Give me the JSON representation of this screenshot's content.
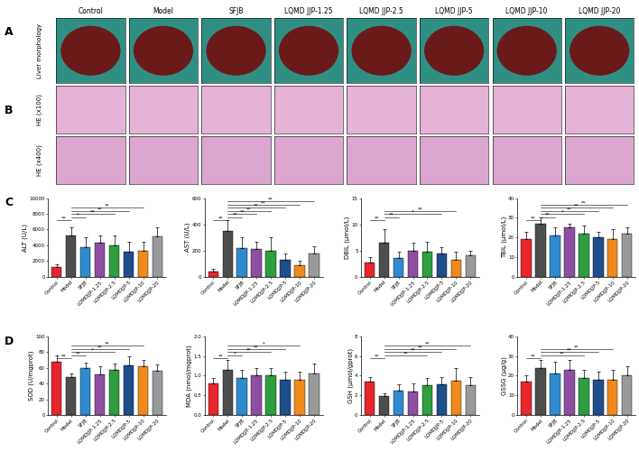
{
  "panel_labels": [
    "A",
    "B",
    "C",
    "D"
  ],
  "groups": [
    "Control",
    "Model",
    "SFJB",
    "LQMD JJP-1.25",
    "LQMD JJP-2.5",
    "LQMD JJP-5",
    "LQMD JJP-10",
    "LQMD JJP-20"
  ],
  "image_rows": [
    "Liver morphology",
    "HE (x100)",
    "HE (x400)"
  ],
  "chart_data": [
    {
      "type": "bar",
      "y_label": "ALT (U/L)",
      "categories": [
        "Control",
        "Model",
        "SFJB",
        "LQMDJJP-1.25",
        "LQMDJJP-2.5",
        "LQMDJJP-5",
        "LQMDJJP-10",
        "LQMDJJP-20"
      ],
      "values": [
        1200,
        5300,
        3800,
        4300,
        4000,
        3200,
        3300,
        5100
      ],
      "errors": [
        400,
        1000,
        1200,
        1000,
        1200,
        1300,
        1200,
        1200
      ],
      "colors": [
        "#e8262b",
        "#4d4d4d",
        "#2e8bd0",
        "#8e4fa3",
        "#2e9e3f",
        "#1f4e8c",
        "#f08a1c",
        "#9a9a9a"
      ],
      "ylim": [
        0,
        10000
      ],
      "yticks": [
        0,
        2000,
        4000,
        6000,
        8000,
        10000
      ],
      "annotations": [
        {
          "from": 1,
          "to": 0,
          "label": "**"
        },
        {
          "from": 1,
          "to": 2,
          "label": "*"
        },
        {
          "from": 1,
          "to": 4,
          "label": "**"
        },
        {
          "from": 1,
          "to": 5,
          "label": "**"
        },
        {
          "from": 1,
          "to": 6,
          "label": "**"
        }
      ]
    },
    {
      "type": "bar",
      "y_label": "AST (U/L)",
      "categories": [
        "Control",
        "Model",
        "SFJB",
        "LQMDJJP-1.25",
        "LQMDJJP-2.5",
        "LQMDJJP-5",
        "LQMDJJP-10",
        "LQMDJJP-20"
      ],
      "values": [
        40,
        350,
        220,
        210,
        200,
        130,
        90,
        175
      ],
      "errors": [
        20,
        80,
        80,
        60,
        100,
        50,
        30,
        60
      ],
      "colors": [
        "#e8262b",
        "#4d4d4d",
        "#2e8bd0",
        "#8e4fa3",
        "#2e9e3f",
        "#1f4e8c",
        "#f08a1c",
        "#9a9a9a"
      ],
      "ylim": [
        0,
        600
      ],
      "yticks": [
        0,
        200,
        400,
        600
      ],
      "annotations": [
        {
          "from": 1,
          "to": 0,
          "label": "**"
        },
        {
          "from": 1,
          "to": 2,
          "label": "**"
        },
        {
          "from": 1,
          "to": 3,
          "label": "**"
        },
        {
          "from": 1,
          "to": 4,
          "label": "**"
        },
        {
          "from": 1,
          "to": 5,
          "label": "**"
        },
        {
          "from": 1,
          "to": 6,
          "label": "**"
        },
        {
          "from": 1,
          "to": 7,
          "label": "**"
        }
      ]
    },
    {
      "type": "bar",
      "y_label": "DBIL (μmol/L)",
      "categories": [
        "Control",
        "Model",
        "SFJB",
        "LQMDJJP-1.25",
        "LQMDJJP-2.5",
        "LQMDJJP-5",
        "LQMDJJP-10",
        "LQMDJJP-20"
      ],
      "values": [
        2.7,
        6.5,
        3.5,
        5.0,
        4.8,
        4.4,
        3.2,
        4.0
      ],
      "errors": [
        1.0,
        2.5,
        1.2,
        1.5,
        1.8,
        1.3,
        1.5,
        1.0
      ],
      "colors": [
        "#e8262b",
        "#4d4d4d",
        "#2e8bd0",
        "#8e4fa3",
        "#2e9e3f",
        "#1f4e8c",
        "#f08a1c",
        "#9a9a9a"
      ],
      "ylim": [
        0,
        15
      ],
      "yticks": [
        0,
        5,
        10,
        15
      ],
      "annotations": [
        {
          "from": 1,
          "to": 0,
          "label": "**"
        },
        {
          "from": 1,
          "to": 2,
          "label": "**"
        },
        {
          "from": 1,
          "to": 5,
          "label": "*"
        },
        {
          "from": 1,
          "to": 6,
          "label": "**"
        }
      ]
    },
    {
      "type": "bar",
      "y_label": "TBIL (μmol/L)",
      "categories": [
        "Control",
        "Model",
        "SFJB",
        "LQMDJJP-1.25",
        "LQMDJJP-2.5",
        "LQMDJJP-5",
        "LQMDJJP-10",
        "LQMDJJP-20"
      ],
      "values": [
        19,
        27,
        21,
        25,
        22,
        20,
        19,
        22
      ],
      "errors": [
        4,
        3,
        4,
        2,
        4,
        3,
        5,
        3
      ],
      "colors": [
        "#e8262b",
        "#4d4d4d",
        "#2e8bd0",
        "#8e4fa3",
        "#2e9e3f",
        "#1f4e8c",
        "#f08a1c",
        "#9a9a9a"
      ],
      "ylim": [
        0,
        40
      ],
      "yticks": [
        0,
        10,
        20,
        30,
        40
      ],
      "annotations": [
        {
          "from": 1,
          "to": 0,
          "label": "**"
        },
        {
          "from": 1,
          "to": 2,
          "label": "**"
        },
        {
          "from": 1,
          "to": 4,
          "label": "*"
        },
        {
          "from": 1,
          "to": 5,
          "label": "**"
        },
        {
          "from": 1,
          "to": 6,
          "label": "**"
        },
        {
          "from": 1,
          "to": 7,
          "label": "**"
        }
      ]
    },
    {
      "type": "bar",
      "y_label": "SOD (U/mgprot)",
      "categories": [
        "Control",
        "Model",
        "SFJB",
        "LQMDJJP-1.25",
        "LQMDJJP-2.5",
        "LQMDJJP-5",
        "LQMDJJP-10",
        "LQMDJJP-20"
      ],
      "values": [
        68,
        48,
        60,
        52,
        57,
        63,
        62,
        56
      ],
      "errors": [
        8,
        5,
        7,
        10,
        8,
        12,
        8,
        8
      ],
      "colors": [
        "#e8262b",
        "#4d4d4d",
        "#2e8bd0",
        "#8e4fa3",
        "#2e9e3f",
        "#1f4e8c",
        "#f08a1c",
        "#9a9a9a"
      ],
      "ylim": [
        0,
        100
      ],
      "yticks": [
        0,
        20,
        40,
        60,
        80,
        100
      ],
      "annotations": [
        {
          "from": 1,
          "to": 0,
          "label": "**"
        },
        {
          "from": 1,
          "to": 2,
          "label": "**"
        },
        {
          "from": 1,
          "to": 4,
          "label": "*"
        },
        {
          "from": 1,
          "to": 5,
          "label": "**"
        },
        {
          "from": 1,
          "to": 6,
          "label": "**"
        }
      ]
    },
    {
      "type": "bar",
      "y_label": "MDA (nmol/mgprot)",
      "categories": [
        "Control",
        "Model",
        "SFJB",
        "LQMDJJP-1.25",
        "LQMDJJP-2.5",
        "LQMDJJP-5",
        "LQMDJJP-10",
        "LQMDJJP-20"
      ],
      "values": [
        0.8,
        1.15,
        0.95,
        1.0,
        1.0,
        0.9,
        0.9,
        1.05
      ],
      "errors": [
        0.15,
        0.25,
        0.2,
        0.2,
        0.2,
        0.2,
        0.2,
        0.25
      ],
      "colors": [
        "#e8262b",
        "#4d4d4d",
        "#2e8bd0",
        "#8e4fa3",
        "#2e9e3f",
        "#1f4e8c",
        "#f08a1c",
        "#9a9a9a"
      ],
      "ylim": [
        0.0,
        2.0
      ],
      "yticks": [
        0.0,
        0.5,
        1.0,
        1.5,
        2.0
      ],
      "annotations": [
        {
          "from": 1,
          "to": 0,
          "label": "**"
        },
        {
          "from": 1,
          "to": 2,
          "label": "*"
        },
        {
          "from": 1,
          "to": 4,
          "label": "**"
        },
        {
          "from": 1,
          "to": 5,
          "label": "**"
        },
        {
          "from": 1,
          "to": 6,
          "label": "*"
        }
      ]
    },
    {
      "type": "bar",
      "y_label": "GSH (μmol/gprot)",
      "categories": [
        "Control",
        "Model",
        "SFJB",
        "LQMDJJP-1.25",
        "LQMDJJP-2.5",
        "LQMDJJP-5",
        "LQMDJJP-10",
        "LQMDJJP-20"
      ],
      "values": [
        3.4,
        1.9,
        2.5,
        2.4,
        3.0,
        3.1,
        3.5,
        3.0
      ],
      "errors": [
        0.5,
        0.3,
        0.6,
        0.8,
        0.8,
        0.8,
        1.3,
        0.9
      ],
      "colors": [
        "#e8262b",
        "#4d4d4d",
        "#2e8bd0",
        "#8e4fa3",
        "#2e9e3f",
        "#1f4e8c",
        "#f08a1c",
        "#9a9a9a"
      ],
      "ylim": [
        0,
        8
      ],
      "yticks": [
        0,
        2,
        4,
        6,
        8
      ],
      "annotations": [
        {
          "from": 1,
          "to": 0,
          "label": "**"
        },
        {
          "from": 1,
          "to": 4,
          "label": "**"
        },
        {
          "from": 1,
          "to": 5,
          "label": "**"
        },
        {
          "from": 1,
          "to": 6,
          "label": "**"
        },
        {
          "from": 1,
          "to": 7,
          "label": "**"
        }
      ]
    },
    {
      "type": "bar",
      "y_label": "GSSG (μg/g)",
      "categories": [
        "Control",
        "Model",
        "SFJB",
        "LQMDJJP-1.25",
        "LQMDJJP-2.5",
        "LQMDJJP-5",
        "LQMDJJP-10",
        "LQMDJJP-20"
      ],
      "values": [
        17,
        24,
        21,
        23,
        19,
        18,
        18,
        20
      ],
      "errors": [
        3,
        4,
        6,
        5,
        4,
        4,
        5,
        5
      ],
      "colors": [
        "#e8262b",
        "#4d4d4d",
        "#2e8bd0",
        "#8e4fa3",
        "#2e9e3f",
        "#1f4e8c",
        "#f08a1c",
        "#9a9a9a"
      ],
      "ylim": [
        0,
        40
      ],
      "yticks": [
        0,
        10,
        20,
        30,
        40
      ],
      "annotations": [
        {
          "from": 1,
          "to": 0,
          "label": "**"
        },
        {
          "from": 1,
          "to": 4,
          "label": "**"
        },
        {
          "from": 1,
          "to": 5,
          "label": "**"
        },
        {
          "from": 1,
          "to": 6,
          "label": "**"
        }
      ]
    }
  ]
}
